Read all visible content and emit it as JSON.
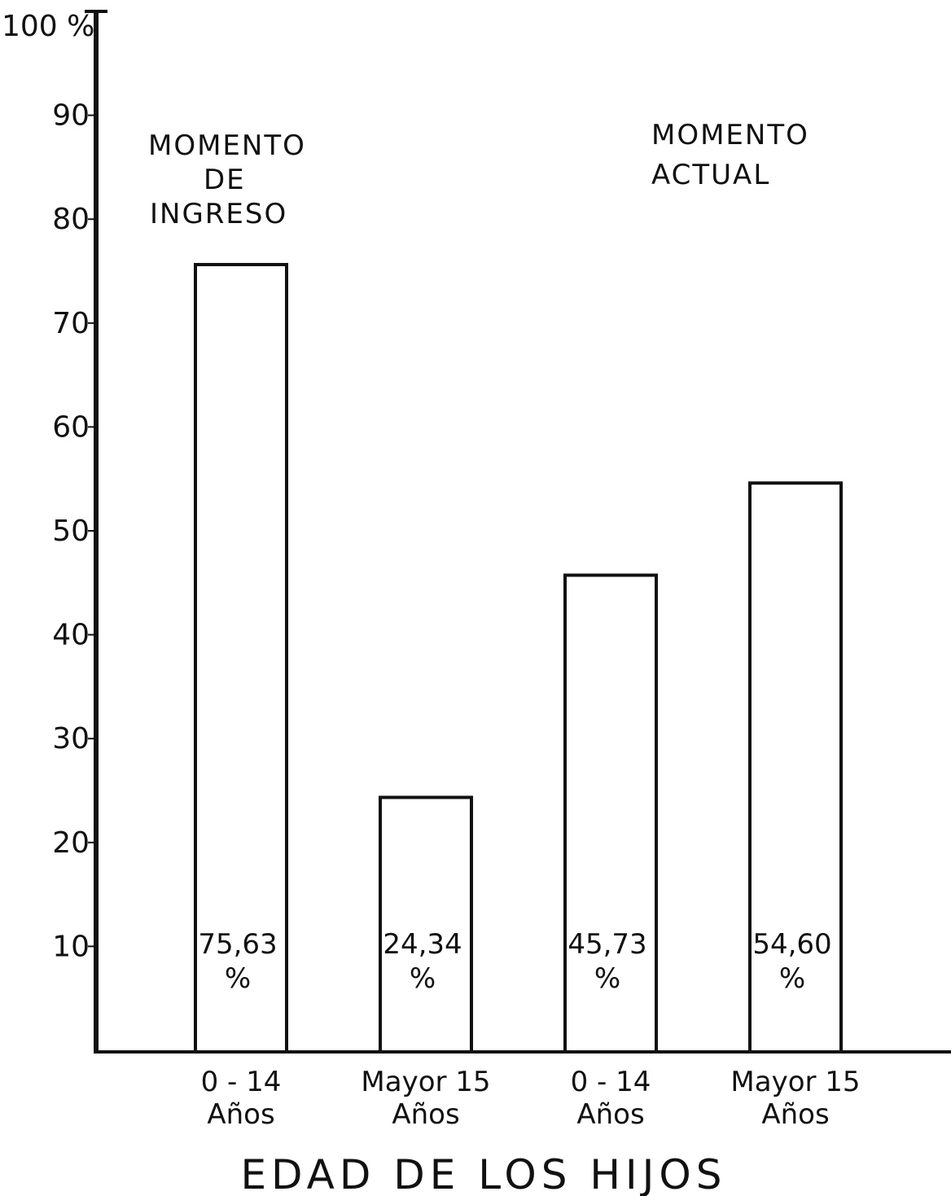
{
  "chart_data": {
    "type": "bar",
    "title": "",
    "xlabel": "EDAD DE LOS HIJOS",
    "ylabel": "",
    "ylim": [
      0,
      100
    ],
    "y_ticks": [
      10,
      20,
      30,
      40,
      50,
      60,
      70,
      80,
      90,
      100
    ],
    "y_tick_labels": [
      "10",
      "20",
      "30",
      "40",
      "50",
      "60",
      "70",
      "80",
      "90",
      "100 %"
    ],
    "grid": false,
    "groups": [
      {
        "label_lines": [
          "MOMENTO",
          "DE",
          "INGRESO"
        ]
      },
      {
        "label_lines": [
          "MOMENTO",
          "ACTUAL"
        ]
      }
    ],
    "bars": [
      {
        "group": 0,
        "category_lines": [
          "0 - 14",
          "Años"
        ],
        "value": 75.63,
        "label_lines": [
          "75,63",
          "%"
        ]
      },
      {
        "group": 0,
        "category_lines": [
          "Mayor 15",
          "Años"
        ],
        "value": 24.34,
        "label_lines": [
          "24,34",
          "%"
        ]
      },
      {
        "group": 1,
        "category_lines": [
          "0 - 14",
          "Años"
        ],
        "value": 45.73,
        "label_lines": [
          "45,73",
          "%"
        ]
      },
      {
        "group": 1,
        "category_lines": [
          "Mayor 15",
          "Años"
        ],
        "value": 54.6,
        "label_lines": [
          "54,60",
          "%"
        ]
      }
    ],
    "colors": {
      "ink": "#111111",
      "bar_fill": "#ffffff"
    }
  }
}
